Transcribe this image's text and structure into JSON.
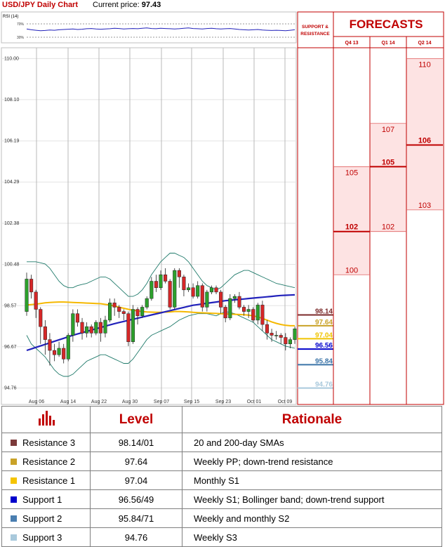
{
  "header": {
    "title": "USD/JPY Daily Chart",
    "price_label": "Current price:",
    "price_value": "97.43"
  },
  "rsi": {
    "label": "RSI (14)",
    "levels": [
      "70%",
      "30%"
    ]
  },
  "forecast": {
    "title": "FORECASTS",
    "sr_label_1": "SUPPORT &",
    "sr_label_2": "RESISTANCE",
    "columns": [
      "Q4 13",
      "Q1 14",
      "Q2 14"
    ]
  },
  "chart_data": [
    {
      "type": "candlestick",
      "title": "USD/JPY Daily Chart",
      "ylim": [
        94.0,
        110.5
      ],
      "y_ticks": [
        "110.00",
        "108.10",
        "106.19",
        "104.29",
        "102.38",
        "100.48",
        "98.57",
        "96.67",
        "94.76"
      ],
      "x_ticks": [
        "Aug 06",
        "Aug 14",
        "Aug 22",
        "Aug 30",
        "Sep 07",
        "Sep 15",
        "Sep 23",
        "Oct 01",
        "Oct 09"
      ],
      "colors": {
        "up": "#2ca02c",
        "down": "#d62728",
        "sma20": "#f5b800",
        "sma200": "#2222bb",
        "bollinger": "#1f7a6a"
      },
      "candles": [
        [
          98.3,
          99.8,
          100.1,
          98.1
        ],
        [
          99.8,
          99.2,
          100.0,
          98.9
        ],
        [
          99.2,
          98.4,
          99.3,
          98.0
        ],
        [
          98.4,
          97.6,
          98.5,
          96.8
        ],
        [
          97.6,
          97.0,
          97.9,
          96.3
        ],
        [
          97.0,
          96.5,
          97.3,
          95.8
        ],
        [
          96.5,
          96.3,
          96.8,
          96.0
        ],
        [
          96.3,
          96.6,
          96.9,
          96.2
        ],
        [
          96.6,
          96.1,
          96.8,
          95.9
        ],
        [
          96.1,
          97.2,
          97.3,
          96.0
        ],
        [
          97.2,
          98.2,
          98.4,
          96.9
        ],
        [
          98.2,
          97.8,
          98.4,
          97.6
        ],
        [
          97.8,
          97.3,
          98.0,
          97.0
        ],
        [
          97.3,
          97.6,
          97.8,
          97.1
        ],
        [
          97.6,
          97.3,
          97.7,
          97.1
        ],
        [
          97.3,
          97.8,
          97.9,
          97.2
        ],
        [
          97.8,
          97.3,
          98.0,
          96.9
        ],
        [
          97.3,
          97.9,
          98.1,
          97.1
        ],
        [
          97.9,
          98.7,
          98.9,
          97.8
        ],
        [
          98.7,
          98.5,
          98.9,
          98.1
        ],
        [
          98.5,
          98.3,
          98.6,
          98.0
        ],
        [
          98.3,
          98.2,
          98.4,
          97.9
        ],
        [
          98.2,
          96.9,
          98.3,
          96.7
        ],
        [
          96.9,
          98.4,
          98.6,
          96.8
        ],
        [
          98.4,
          98.1,
          98.5,
          97.7
        ],
        [
          98.1,
          98.5,
          98.6,
          98.0
        ],
        [
          98.5,
          98.9,
          99.0,
          98.4
        ],
        [
          98.9,
          99.7,
          99.9,
          98.8
        ],
        [
          99.7,
          99.4,
          100.0,
          99.2
        ],
        [
          99.4,
          100.0,
          100.2,
          99.3
        ],
        [
          100.0,
          99.7,
          100.3,
          99.6
        ],
        [
          99.7,
          98.5,
          99.8,
          98.4
        ],
        [
          98.5,
          100.2,
          100.3,
          98.4
        ],
        [
          100.2,
          99.9,
          100.3,
          99.4
        ],
        [
          99.9,
          99.3,
          100.0,
          99.0
        ],
        [
          99.3,
          99.4,
          99.6,
          99.2
        ],
        [
          99.4,
          99.0,
          99.6,
          98.9
        ],
        [
          99.0,
          99.5,
          99.7,
          98.9
        ],
        [
          99.5,
          98.5,
          99.6,
          98.3
        ],
        [
          98.5,
          99.2,
          99.3,
          98.3
        ],
        [
          99.2,
          99.4,
          99.5,
          99.1
        ],
        [
          99.4,
          99.2,
          99.5,
          99.1
        ],
        [
          99.2,
          98.5,
          99.3,
          98.2
        ],
        [
          98.5,
          98.0,
          98.6,
          97.8
        ],
        [
          98.0,
          98.9,
          99.1,
          97.9
        ],
        [
          98.9,
          99.0,
          99.1,
          98.7
        ],
        [
          99.0,
          98.5,
          99.2,
          98.4
        ],
        [
          98.5,
          98.3,
          98.6,
          98.1
        ],
        [
          98.3,
          98.4,
          98.6,
          98.0
        ],
        [
          98.4,
          97.9,
          98.5,
          97.8
        ],
        [
          97.9,
          98.6,
          98.7,
          97.7
        ],
        [
          98.6,
          97.7,
          98.8,
          97.4
        ],
        [
          97.7,
          97.3,
          97.9,
          97.0
        ],
        [
          97.3,
          97.2,
          97.5,
          96.9
        ],
        [
          97.2,
          97.2,
          97.4,
          97.0
        ],
        [
          97.2,
          97.1,
          97.3,
          96.8
        ],
        [
          97.1,
          96.8,
          97.3,
          96.5
        ],
        [
          96.8,
          97.0,
          97.1,
          96.6
        ],
        [
          97.0,
          97.5,
          97.6,
          96.8
        ]
      ],
      "sma20": [
        98.6,
        98.62,
        98.64,
        98.67,
        98.7,
        98.72,
        98.73,
        98.74,
        98.74,
        98.73,
        98.72,
        98.71,
        98.7,
        98.69,
        98.68,
        98.67,
        98.66,
        98.63,
        98.6,
        98.55,
        98.5,
        98.45,
        98.4,
        98.36,
        98.33,
        98.3,
        98.28,
        98.27,
        98.26,
        98.26,
        98.27,
        98.28,
        98.3,
        98.3,
        98.29,
        98.28,
        98.26,
        98.25,
        98.24,
        98.23,
        98.22,
        98.21,
        98.2,
        98.19,
        98.18,
        98.17,
        98.16,
        98.15,
        98.13,
        98.1,
        98.05,
        97.98,
        97.9,
        97.82,
        97.75,
        97.7,
        97.66,
        97.64,
        97.64
      ],
      "sma200": [
        96.5,
        96.57,
        96.64,
        96.71,
        96.78,
        96.85,
        96.92,
        96.99,
        97.06,
        97.13,
        97.2,
        97.26,
        97.32,
        97.38,
        97.44,
        97.5,
        97.56,
        97.62,
        97.68,
        97.74,
        97.79,
        97.84,
        97.89,
        97.94,
        97.99,
        98.04,
        98.09,
        98.14,
        98.19,
        98.24,
        98.29,
        98.34,
        98.39,
        98.44,
        98.49,
        98.54,
        98.59,
        98.62,
        98.65,
        98.68,
        98.71,
        98.74,
        98.77,
        98.8,
        98.82,
        98.84,
        98.86,
        98.88,
        98.9,
        98.92,
        98.94,
        98.96,
        98.98,
        99.0,
        99.02,
        99.04,
        99.05,
        99.06,
        99.07
      ],
      "bb_upper": [
        100.6,
        100.6,
        100.6,
        100.55,
        100.5,
        100.3,
        100.0,
        99.7,
        99.5,
        99.4,
        99.4,
        99.5,
        99.55,
        99.6,
        99.7,
        99.8,
        99.9,
        99.9,
        99.8,
        99.6,
        99.4,
        99.2,
        99.0,
        99.0,
        99.1,
        99.3,
        99.6,
        100.0,
        100.3,
        100.6,
        100.8,
        101.0,
        101.0,
        100.9,
        100.8,
        100.6,
        100.3,
        100.0,
        99.7,
        99.5,
        99.4,
        99.3,
        99.4,
        99.6,
        99.8,
        100.0,
        100.1,
        100.2,
        100.2,
        100.1,
        100.0,
        99.9,
        99.8,
        99.7,
        99.6,
        99.55,
        99.5,
        99.45,
        99.4
      ],
      "bb_lower": [
        97.2,
        96.8,
        96.6,
        96.4,
        96.2,
        95.9,
        95.6,
        95.4,
        95.3,
        95.3,
        95.4,
        95.6,
        95.8,
        96.0,
        96.1,
        96.2,
        96.3,
        96.3,
        96.2,
        96.1,
        96.0,
        95.9,
        95.9,
        96.1,
        96.4,
        96.7,
        97.0,
        97.2,
        97.3,
        97.4,
        97.5,
        97.6,
        97.75,
        97.9,
        98.0,
        98.1,
        98.15,
        98.2,
        98.2,
        98.2,
        98.15,
        98.1,
        98.2,
        98.3,
        98.25,
        98.2,
        98.1,
        98.0,
        97.9,
        97.8,
        97.6,
        97.4,
        97.2,
        97.0,
        96.9,
        96.8,
        96.7,
        96.65,
        96.6
      ]
    },
    {
      "type": "line",
      "title": "RSI (14)",
      "ylim": [
        0,
        100
      ],
      "reference_levels": [
        70,
        30
      ],
      "values": [
        52,
        49,
        47,
        45,
        46,
        48,
        47,
        49,
        50,
        51,
        52,
        50,
        51,
        53,
        54,
        52,
        51,
        52,
        53,
        55,
        54,
        52,
        53,
        54,
        53,
        55,
        56,
        54,
        53,
        55,
        54,
        53,
        52,
        53,
        55,
        56,
        54,
        53,
        52,
        54,
        55,
        53,
        52,
        53,
        54,
        52,
        50,
        49,
        48,
        49,
        50,
        48,
        47,
        46,
        47,
        46,
        45,
        47,
        49
      ],
      "color": "#2222bb"
    }
  ],
  "sr_levels": [
    {
      "label": "98.14",
      "value": 98.14,
      "color": "#7b2a2a",
      "bold": true
    },
    {
      "label": "97.64",
      "value": 97.64,
      "color": "#c9a227",
      "bold": true
    },
    {
      "label": "97.04",
      "value": 97.04,
      "color": "#f0c400",
      "bold": true
    },
    {
      "label": "96.56",
      "value": 96.56,
      "color": "#0000cc",
      "bold": true
    },
    {
      "label": "95.84",
      "value": 95.84,
      "color": "#3b74a8",
      "bold": true
    },
    {
      "label": "94.76",
      "value": 94.76,
      "color": "#a9c9dc",
      "bold": true
    }
  ],
  "forecast_ranges": [
    {
      "column": 0,
      "high": 105,
      "pivot": 102,
      "low": 100,
      "high_label": "105",
      "pivot_label": "102",
      "low_label": "100"
    },
    {
      "column": 1,
      "high": 107,
      "pivot": 105,
      "low": 102,
      "high_label": "107",
      "pivot_label": "105",
      "low_label": "102"
    },
    {
      "column": 2,
      "high": 110,
      "pivot": 106,
      "low": 103,
      "high_label": "110",
      "pivot_label": "106",
      "low_label": "103"
    }
  ],
  "legend": {
    "headers": [
      "",
      "Level",
      "Rationale"
    ],
    "rows": [
      {
        "name": "Resistance 3",
        "level": "98.14/01",
        "rationale": "20 and 200-day SMAs",
        "color": "#7b3a3a"
      },
      {
        "name": "Resistance 2",
        "level": "97.64",
        "rationale": "Weekly PP; down-trend resistance",
        "color": "#c9a227"
      },
      {
        "name": "Resistance 1",
        "level": "97.04",
        "rationale": "Monthly S1",
        "color": "#f5c400"
      },
      {
        "name": "Support 1",
        "level": "96.56/49",
        "rationale": "Weekly S1; Bollinger band; down-trend support",
        "color": "#0000cc"
      },
      {
        "name": "Support 2",
        "level": "95.84/71",
        "rationale": "Weekly and monthly S2",
        "color": "#4a7eb0"
      },
      {
        "name": "Support 3",
        "level": "94.76",
        "rationale": "Weekly S3",
        "color": "#a9c9dc"
      }
    ]
  }
}
